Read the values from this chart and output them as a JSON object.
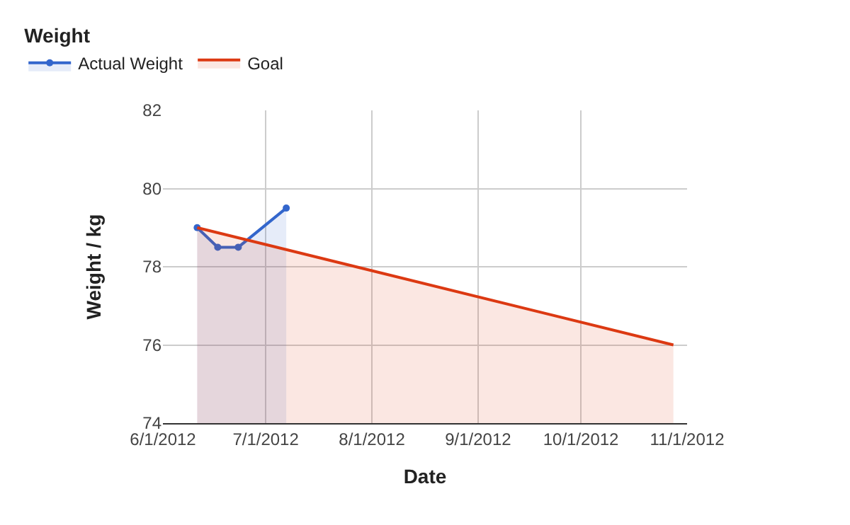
{
  "chart_data": {
    "type": "area",
    "legend_title": "Weight",
    "xlabel": "Date",
    "ylabel": "Weight / kg",
    "series": [
      {
        "name": "Actual Weight",
        "color": "#3366cc",
        "x": [
          "2012-06-11",
          "2012-06-17",
          "2012-06-23",
          "2012-07-07"
        ],
        "values": [
          79.0,
          78.5,
          78.5,
          79.5
        ],
        "marker": "circle"
      },
      {
        "name": "Goal",
        "color": "#dc3912",
        "x": [
          "2012-06-11",
          "2012-10-28"
        ],
        "values": [
          79.0,
          76.0
        ],
        "marker": "none"
      }
    ],
    "xlim": [
      "2012-06-01",
      "2012-11-01"
    ],
    "xticks": [
      {
        "value": "2012-06-01",
        "label": "6/1/2012"
      },
      {
        "value": "2012-07-01",
        "label": "7/1/2012"
      },
      {
        "value": "2012-08-01",
        "label": "8/1/2012"
      },
      {
        "value": "2012-09-01",
        "label": "9/1/2012"
      },
      {
        "value": "2012-10-01",
        "label": "10/1/2012"
      },
      {
        "value": "2012-11-01",
        "label": "11/1/2012"
      }
    ],
    "ylim": [
      74,
      82
    ],
    "yticks": [
      74,
      76,
      78,
      80,
      82
    ],
    "grid": true,
    "legend": "top left"
  }
}
